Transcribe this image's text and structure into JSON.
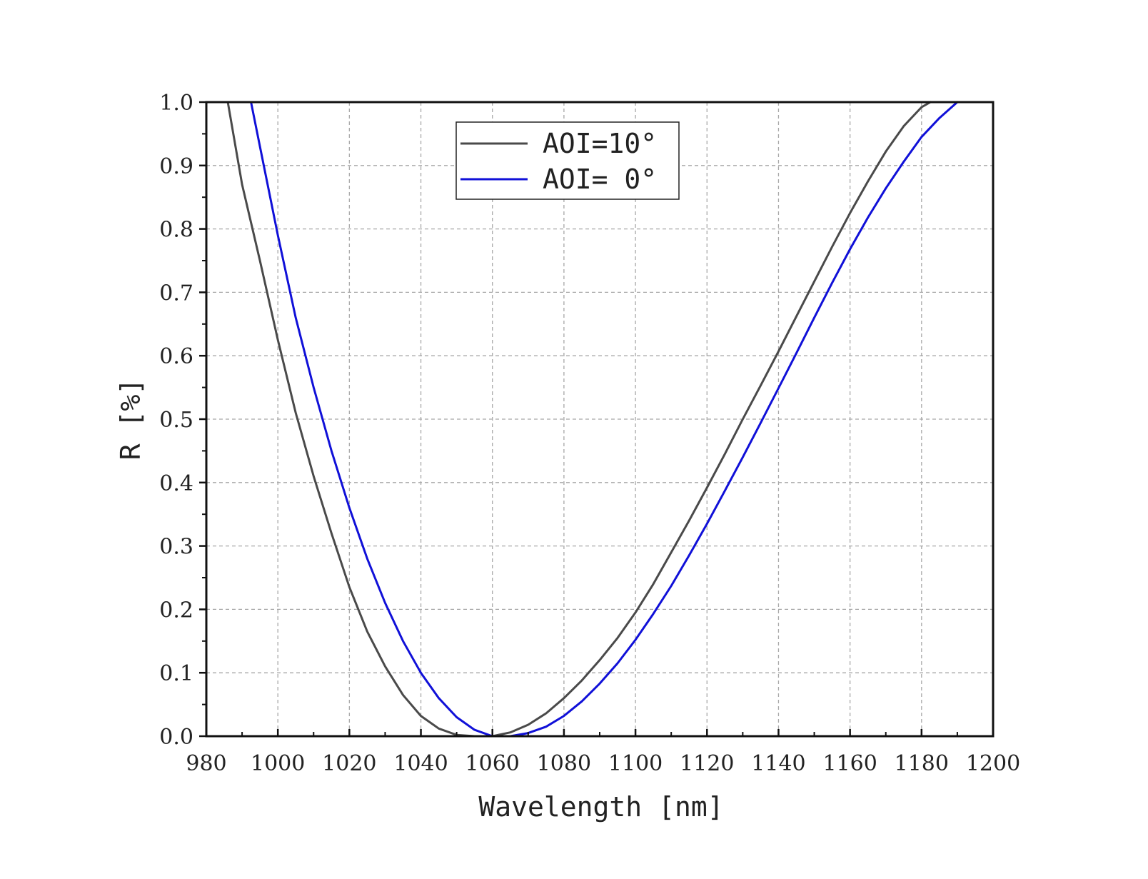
{
  "chart_data": {
    "type": "line",
    "xlabel": "Wavelength [nm]",
    "ylabel": "R [%]",
    "xlim": [
      980,
      1200
    ],
    "ylim": [
      0,
      1.0
    ],
    "x_ticks": [
      "980",
      "1000",
      "1020",
      "1040",
      "1060",
      "1080",
      "1100",
      "1120",
      "1140",
      "1160",
      "1180",
      "1200"
    ],
    "y_ticks": [
      "0.0",
      "0.1",
      "0.2",
      "0.3",
      "0.4",
      "0.5",
      "0.6",
      "0.7",
      "0.8",
      "0.9",
      "1.0"
    ],
    "grid": true,
    "legend_position": "top-center",
    "series": [
      {
        "name": "AOI=10°",
        "color": "#4a4a4a",
        "x": [
          986,
          990,
          995,
          1000,
          1005,
          1010,
          1015,
          1020,
          1025,
          1030,
          1035,
          1040,
          1045,
          1050,
          1055,
          1060,
          1065,
          1070,
          1075,
          1080,
          1085,
          1090,
          1095,
          1100,
          1105,
          1110,
          1115,
          1120,
          1125,
          1130,
          1135,
          1140,
          1145,
          1150,
          1155,
          1160,
          1165,
          1170,
          1175,
          1180,
          1182.5
        ],
        "y": [
          1.0,
          0.87,
          0.75,
          0.625,
          0.51,
          0.41,
          0.32,
          0.235,
          0.165,
          0.11,
          0.065,
          0.032,
          0.012,
          0.002,
          0.0,
          0.0,
          0.006,
          0.018,
          0.036,
          0.06,
          0.088,
          0.12,
          0.155,
          0.195,
          0.24,
          0.29,
          0.34,
          0.392,
          0.445,
          0.5,
          0.553,
          0.607,
          0.662,
          0.717,
          0.772,
          0.825,
          0.875,
          0.922,
          0.962,
          0.992,
          1.0
        ],
        "y_note_hidden": true
      },
      {
        "name": "AOI= 0°",
        "color": "#1010d8",
        "x": [
          992.5,
          995,
          1000,
          1005,
          1010,
          1015,
          1020,
          1025,
          1030,
          1035,
          1040,
          1045,
          1050,
          1055,
          1060,
          1065,
          1070,
          1075,
          1080,
          1085,
          1090,
          1095,
          1100,
          1105,
          1110,
          1115,
          1120,
          1125,
          1130,
          1135,
          1140,
          1145,
          1150,
          1155,
          1160,
          1165,
          1170,
          1175,
          1180,
          1185,
          1190
        ],
        "y": [
          1.0,
          0.93,
          0.79,
          0.66,
          0.55,
          0.45,
          0.36,
          0.28,
          0.21,
          0.15,
          0.1,
          0.06,
          0.03,
          0.01,
          0.0,
          0.0,
          0.005,
          0.015,
          0.032,
          0.055,
          0.083,
          0.115,
          0.152,
          0.193,
          0.237,
          0.285,
          0.335,
          0.387,
          0.44,
          0.494,
          0.549,
          0.604,
          0.66,
          0.715,
          0.768,
          0.818,
          0.864,
          0.906,
          0.945,
          0.975,
          1.0
        ]
      }
    ]
  }
}
